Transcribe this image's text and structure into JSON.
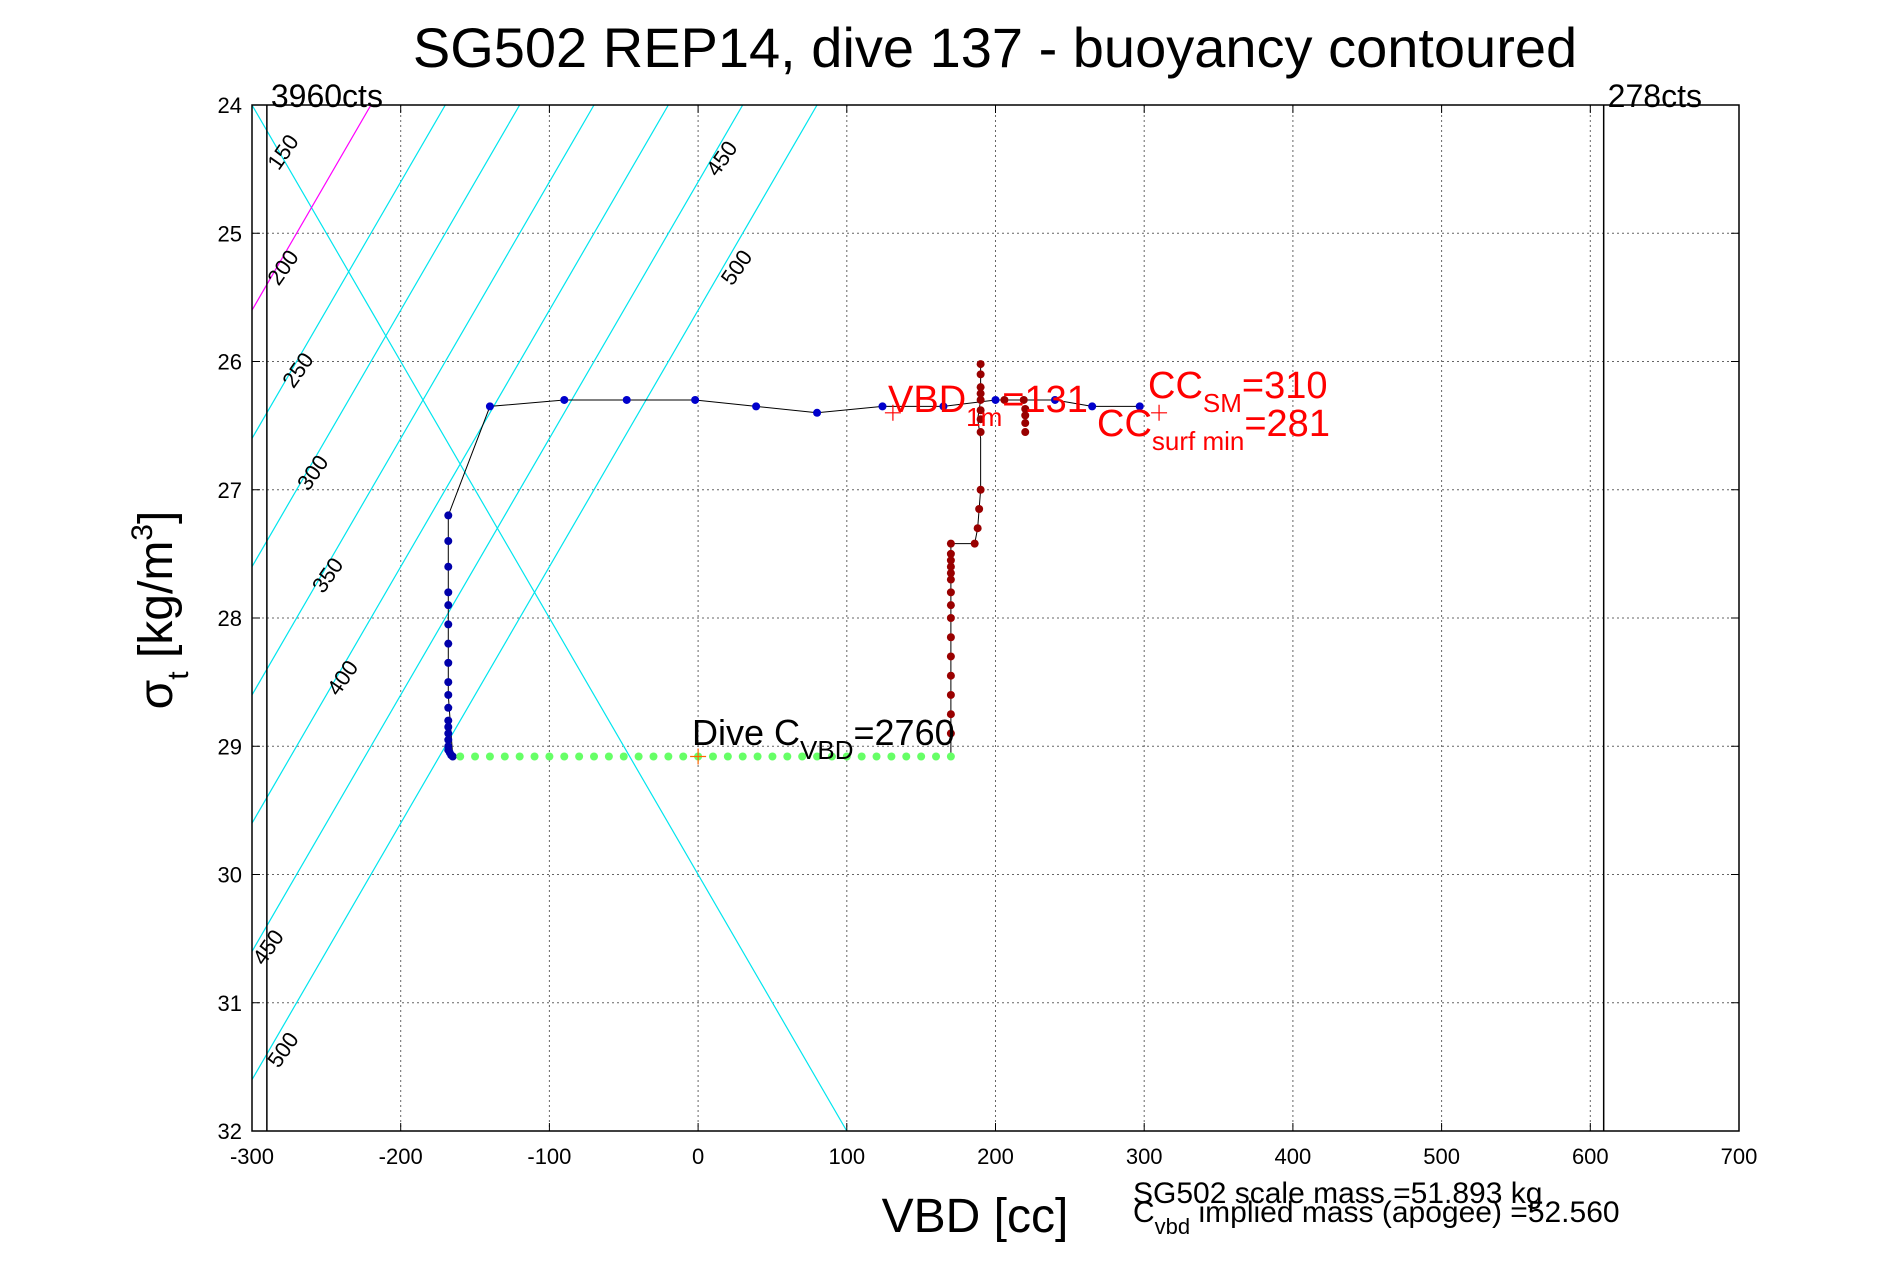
{
  "chart_data": {
    "type": "scatter",
    "title": "SG502 REP14, dive 137 - buoyancy contoured",
    "xlabel": "VBD [cc]",
    "ylabel_base": "σ",
    "ylabel_sub": "t",
    "ylabel_unit_open": " [kg/m",
    "ylabel_unit_sup": "3",
    "ylabel_unit_close": "]",
    "xlim": [
      -300,
      700
    ],
    "ylim": [
      24,
      32
    ],
    "y_reversed": true,
    "grid": true,
    "xticks": [
      -300,
      -200,
      -100,
      0,
      100,
      200,
      300,
      400,
      500,
      600,
      700
    ],
    "xtick_labels": [
      "-300",
      "-200",
      "-100",
      "0",
      "100",
      "200",
      "300",
      "400",
      "500",
      "600",
      "700"
    ],
    "yticks": [
      24,
      25,
      26,
      27,
      28,
      29,
      30,
      31,
      32
    ],
    "ytick_labels": [
      "24",
      "25",
      "26",
      "27",
      "28",
      "29",
      "30",
      "31",
      "32"
    ],
    "vlines": [
      {
        "x": -290,
        "label": "3960cts"
      },
      {
        "x": 609,
        "label": "278cts"
      }
    ],
    "contours": [
      {
        "label": "150",
        "color": "#00e5ee",
        "x_at_24": -300,
        "x_at_25": -250
      },
      {
        "label": "200",
        "color": "#ff00ff",
        "x_at_24": -220,
        "x_at_25": -270
      },
      {
        "label": "250",
        "color": "#00e5ee",
        "x_at_24": -170,
        "x_at_25": -220
      },
      {
        "label": "300",
        "color": "#00e5ee",
        "x_at_24": -120,
        "x_at_25": -170
      },
      {
        "label": "350",
        "color": "#00e5ee",
        "x_at_24": -70,
        "x_at_25": -120
      },
      {
        "label": "400",
        "color": "#00e5ee",
        "x_at_24": -20,
        "x_at_25": -70
      },
      {
        "label": "450",
        "color": "#00e5ee",
        "x_at_24": 30,
        "x_at_25": -20
      },
      {
        "label": "500",
        "color": "#00e5ee",
        "x_at_24": 80,
        "x_at_25": 30
      }
    ],
    "contour_label_positions": [
      {
        "label": "150",
        "x": -275,
        "y": 24.4
      },
      {
        "label": "200",
        "x": -275,
        "y": 25.3
      },
      {
        "label": "250",
        "x": -265,
        "y": 26.1
      },
      {
        "label": "300",
        "x": -255,
        "y": 26.9
      },
      {
        "label": "350",
        "x": -245,
        "y": 27.7
      },
      {
        "label": "400",
        "x": -235,
        "y": 28.5
      },
      {
        "label": "450",
        "x": -285,
        "y": 30.6
      },
      {
        "label": "500",
        "x": -275,
        "y": 31.4
      },
      {
        "label": "450",
        "x": 20,
        "y": 24.45
      },
      {
        "label": "500",
        "x": 30,
        "y": 25.3
      }
    ],
    "series": [
      {
        "color": "#0000cc",
        "x": [
          -140,
          -90,
          -48,
          -2,
          39,
          80,
          124,
          165,
          200,
          240,
          265,
          297
        ],
        "y": [
          26.35,
          26.3,
          26.3,
          26.3,
          26.35,
          26.4,
          26.35,
          26.35,
          26.3,
          26.3,
          26.35,
          26.35
        ]
      },
      {
        "color": "#0000aa",
        "x": [
          -168,
          -168,
          -168,
          -168,
          -168,
          -168,
          -168,
          -168,
          -168,
          -168,
          -168,
          -168,
          -168,
          -168,
          -168,
          -168,
          -168,
          -167,
          -166,
          -165
        ],
        "y": [
          27.2,
          27.4,
          27.6,
          27.8,
          27.9,
          28.05,
          28.2,
          28.35,
          28.5,
          28.6,
          28.7,
          28.8,
          28.85,
          28.9,
          28.95,
          29.0,
          29.03,
          29.05,
          29.07,
          29.08
        ]
      },
      {
        "color": "#66ff66",
        "x": [
          -160,
          -150,
          -140,
          -130,
          -120,
          -110,
          -100,
          -90,
          -80,
          -70,
          -60,
          -50,
          -40,
          -30,
          -20,
          -10,
          0,
          10,
          20,
          30,
          40,
          50,
          60,
          70,
          80,
          90,
          100,
          110,
          120,
          130,
          140,
          150,
          160,
          170
        ],
        "y": [
          29.08,
          29.08,
          29.08,
          29.08,
          29.08,
          29.08,
          29.08,
          29.08,
          29.08,
          29.08,
          29.08,
          29.08,
          29.08,
          29.08,
          29.08,
          29.08,
          29.08,
          29.08,
          29.08,
          29.08,
          29.08,
          29.08,
          29.08,
          29.08,
          29.08,
          29.08,
          29.08,
          29.08,
          29.08,
          29.08,
          29.08,
          29.08,
          29.08,
          29.08
        ]
      },
      {
        "color": "#990000",
        "x": [
          170,
          170,
          170,
          170,
          170,
          170,
          170,
          170,
          170,
          170,
          170,
          170,
          170,
          170,
          170,
          186,
          188,
          189,
          190,
          190,
          190,
          190,
          190,
          190,
          190,
          190,
          190,
          206,
          219,
          220,
          220,
          220,
          220
        ],
        "y": [
          28.9,
          28.75,
          28.6,
          28.45,
          28.3,
          28.15,
          28.0,
          27.9,
          27.8,
          27.7,
          27.65,
          27.6,
          27.55,
          27.5,
          27.42,
          27.42,
          27.3,
          27.15,
          27.0,
          26.55,
          26.45,
          26.38,
          26.3,
          26.25,
          26.2,
          26.1,
          26.02,
          26.3,
          26.3,
          26.37,
          26.42,
          26.48,
          26.55
        ]
      }
    ],
    "trace": {
      "x": [
        -165,
        -168,
        -168,
        -140,
        -90,
        -48,
        -2,
        39,
        80,
        124,
        165,
        200,
        240,
        265,
        297
      ],
      "y": [
        29.08,
        28.6,
        27.2,
        26.35,
        26.3,
        26.3,
        26.3,
        26.35,
        26.4,
        26.35,
        26.35,
        26.3,
        26.3,
        26.35,
        26.35
      ]
    },
    "trace2": {
      "x": [
        170,
        170,
        186,
        188,
        190,
        190,
        188,
        190,
        190
      ],
      "y": [
        29.08,
        27.42,
        27.42,
        27.3,
        27.0,
        26.6,
        26.45,
        26.3,
        26.02
      ]
    },
    "markers": [
      {
        "x": 0,
        "y": 29.08,
        "color": "#ff6600"
      },
      {
        "x": 131,
        "y": 26.4,
        "color": "#ff0000"
      },
      {
        "x": 310,
        "y": 26.4,
        "color": "#ff0000"
      }
    ],
    "annotations": {
      "vbd1m_main": "VBD",
      "vbd1m_sub": "1m",
      "vbd1m_value": "=131",
      "ccsm_main": "CC",
      "ccsm_sub": "SM",
      "ccsm_value": "=310",
      "ccsurf_main": "CC",
      "ccsurf_sub": "surf min",
      "ccsurf_value": "=281",
      "divec_prefix": "Dive C",
      "divec_sub": "VBD",
      "divec_value": "=2760"
    },
    "footer": {
      "scale_mass": "SG502 scale mass =51.893 kg",
      "implied_main": "C",
      "implied_sub": "vbd",
      "implied_rest": " implied mass (apogee) =52.560"
    }
  }
}
